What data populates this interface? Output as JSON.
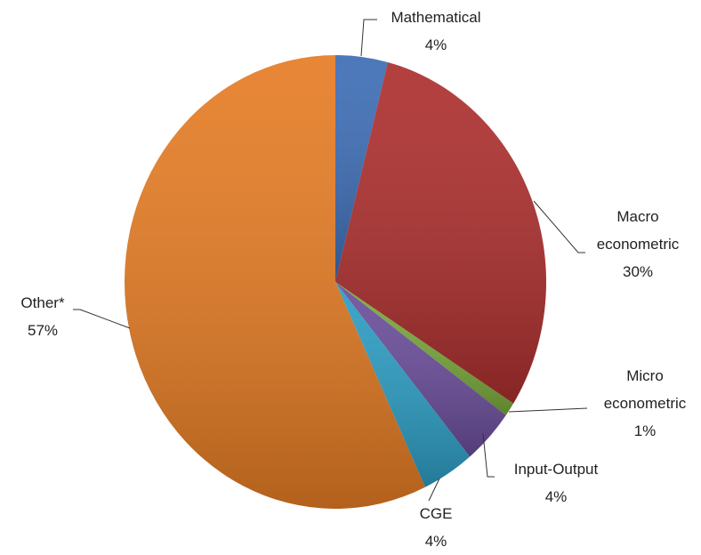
{
  "chart_data": {
    "type": "pie",
    "categories": [
      "Mathematical",
      "Macro econometric",
      "Micro econometric",
      "Input-Output",
      "CGE",
      "Other*"
    ],
    "values": [
      4,
      30,
      1,
      4,
      4,
      57
    ],
    "value_labels": [
      "4%",
      "30%",
      "1%",
      "4%",
      "4%",
      "57%"
    ],
    "colors": [
      "#3d6db5",
      "#ac2f2e",
      "#79a83b",
      "#6a4d9a",
      "#2c9cc2",
      "#e57c24"
    ]
  }
}
